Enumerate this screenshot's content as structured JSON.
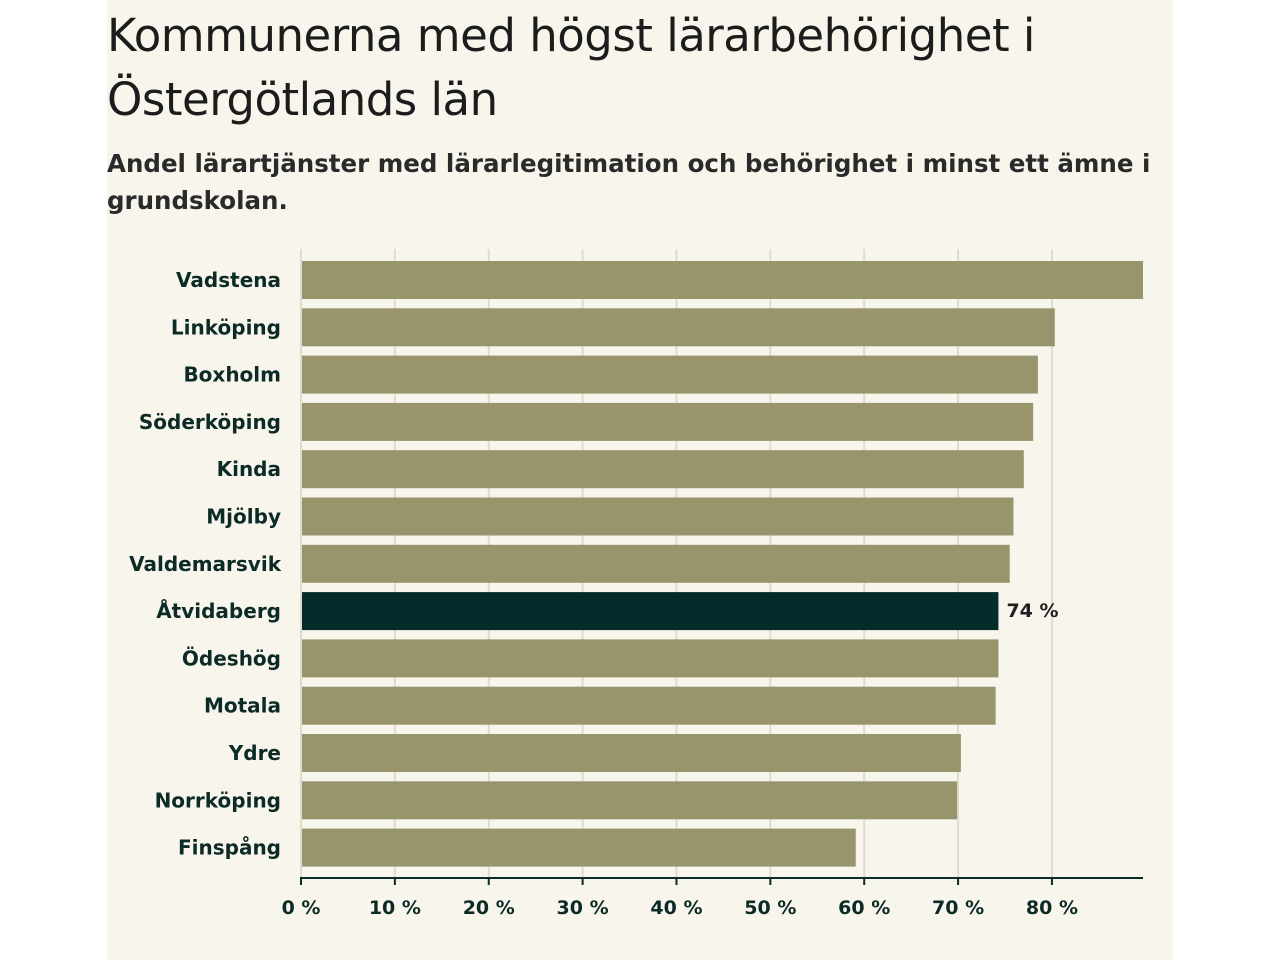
{
  "chart_data": {
    "type": "bar",
    "orientation": "horizontal",
    "title": "Kommunerna med högst lärarbehörighet i Östergötlands län",
    "subtitle": "Andel lärartjänster med lärarlegitimation och behörighet i minst ett ämne i grundskolan.",
    "categories": [
      "Vadstena",
      "Linköping",
      "Boxholm",
      "Söderköping",
      "Kinda",
      "Mjölby",
      "Valdemarsvik",
      "Åtvidaberg",
      "Ödeshög",
      "Motala",
      "Ydre",
      "Norrköping",
      "Finspång"
    ],
    "values": [
      89.7,
      80.3,
      78.5,
      78.0,
      77.0,
      75.9,
      75.5,
      74.3,
      74.3,
      74.0,
      70.3,
      69.9,
      59.1
    ],
    "highlight": {
      "category": "Åtvidaberg",
      "label": "74 %"
    },
    "xlim": [
      0,
      89.7
    ],
    "xticks": [
      0,
      10,
      20,
      30,
      40,
      50,
      60,
      70,
      80
    ],
    "xtick_labels": [
      "0 %",
      "10 %",
      "20 %",
      "30 %",
      "40 %",
      "50 %",
      "60 %",
      "70 %",
      "80 %"
    ],
    "grid": true,
    "colors": {
      "bar": "#98946b",
      "highlight_bar": "#052c2a",
      "grid": "#dedbd0",
      "axis": "#0c2a26",
      "background": "#f8f6ec"
    }
  }
}
